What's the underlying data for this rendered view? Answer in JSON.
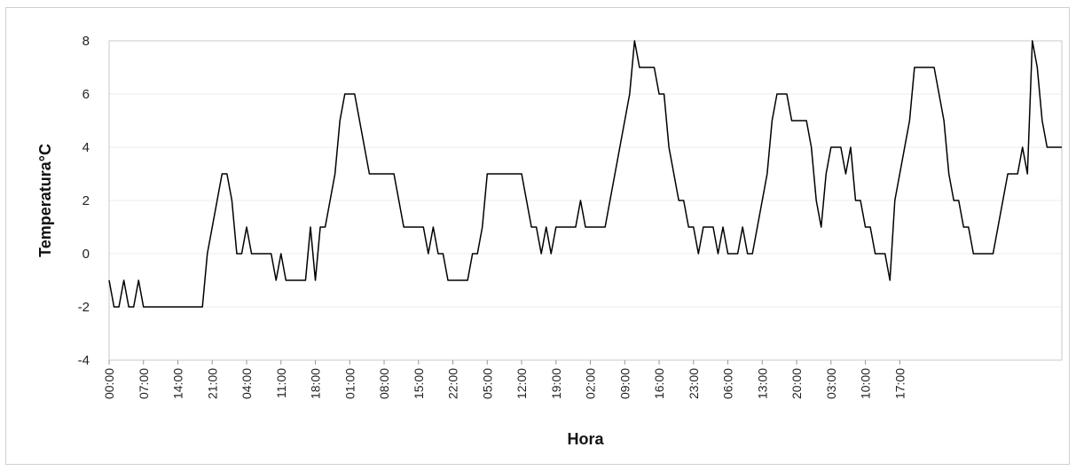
{
  "chart_data": {
    "type": "line",
    "xlabel": "Hora",
    "ylabel": "Temperatura°C",
    "ylim": [
      -4,
      8
    ],
    "yticks": [
      -4,
      -2,
      0,
      2,
      4,
      6,
      8
    ],
    "grid": "horizontal",
    "x_tick_labels": [
      "00:00",
      "07:00",
      "14:00",
      "21:00",
      "04:00",
      "11:00",
      "18:00",
      "01:00",
      "08:00",
      "15:00",
      "22:00",
      "05:00",
      "12:00",
      "19:00",
      "02:00",
      "09:00",
      "16:00",
      "23:00",
      "06:00",
      "13:00",
      "20:00",
      "03:00",
      "10:00",
      "17:00"
    ],
    "x_tick_step_hours": 7,
    "series": [
      {
        "color": "#000000",
        "values": [
          -1,
          -2,
          -2,
          -1,
          -2,
          -2,
          -1,
          -2,
          -2,
          -2,
          -2,
          -2,
          -2,
          -2,
          -2,
          -2,
          -2,
          -2,
          -2,
          -2,
          0,
          1,
          2,
          3,
          3,
          2,
          0,
          0,
          1,
          0,
          0,
          0,
          0,
          0,
          -1,
          0,
          -1,
          -1,
          -1,
          -1,
          -1,
          1,
          -1,
          1,
          1,
          2,
          3,
          5,
          6,
          6,
          6,
          5,
          4,
          3,
          3,
          3,
          3,
          3,
          3,
          2,
          1,
          1,
          1,
          1,
          1,
          0,
          1,
          0,
          0,
          -1,
          -1,
          -1,
          -1,
          -1,
          0,
          0,
          1,
          3,
          3,
          3,
          3,
          3,
          3,
          3,
          3,
          2,
          1,
          1,
          0,
          1,
          0,
          1,
          1,
          1,
          1,
          1,
          2,
          1,
          1,
          1,
          1,
          1,
          2,
          3,
          4,
          5,
          6,
          8,
          7,
          7,
          7,
          7,
          6,
          6,
          4,
          3,
          2,
          2,
          1,
          1,
          0,
          1,
          1,
          1,
          0,
          1,
          0,
          0,
          0,
          1,
          0,
          0,
          1,
          2,
          3,
          5,
          6,
          6,
          6,
          5,
          5,
          5,
          5,
          4,
          2,
          1,
          3,
          4,
          4,
          4,
          3,
          4,
          2,
          2,
          1,
          1,
          0,
          0,
          0,
          -1,
          2,
          3,
          4,
          5,
          7,
          7,
          7,
          7,
          7,
          6,
          5,
          3,
          2,
          2,
          1,
          1,
          0,
          0,
          0,
          0,
          0,
          1,
          2,
          3,
          3,
          3,
          4,
          3,
          8,
          7,
          5,
          4,
          4,
          4,
          4
        ]
      }
    ]
  }
}
